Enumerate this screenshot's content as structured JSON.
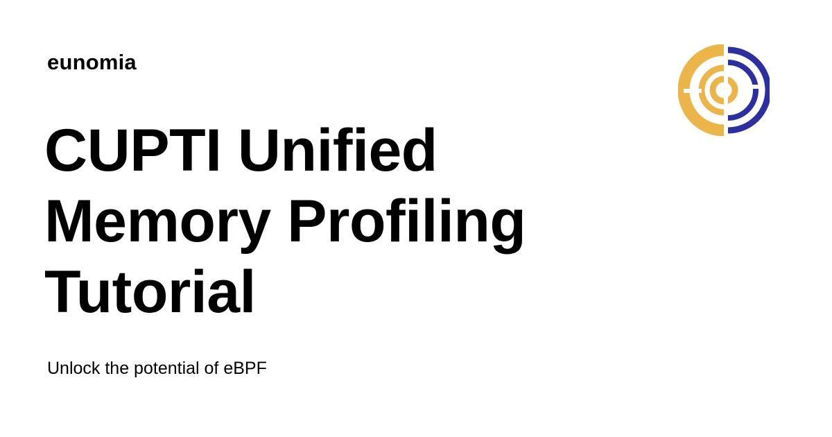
{
  "brand": {
    "name": "eunomia"
  },
  "title": {
    "lines": [
      "CUPTI Unified",
      "Memory Profiling",
      "Tutorial"
    ]
  },
  "subtitle": "Unlock the potential of eBPF",
  "logo": {
    "icon": "eunomia-logo-icon",
    "colors": {
      "gold": "#EBB54A",
      "navy": "#2B2FA0"
    }
  }
}
